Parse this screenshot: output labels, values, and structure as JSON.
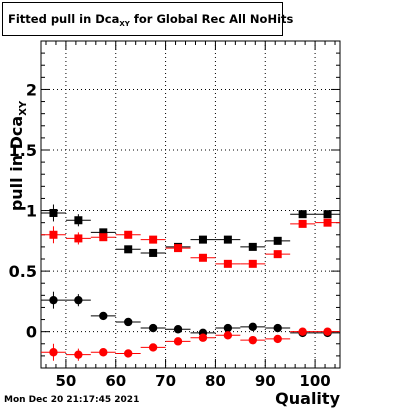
{
  "title": {
    "main": "Fitted pull in Dca",
    "sub": "XY",
    "rest": " for Global Rec All NoHits"
  },
  "datestamp": "Mon Dec 20 21:17:45 2021",
  "chart_data": {
    "type": "scatter",
    "xlabel": "Quality",
    "ylabel_main": "pull in Dca",
    "ylabel_sub": "XY",
    "xlim": [
      45,
      105
    ],
    "ylim": [
      -0.3,
      2.4
    ],
    "x_ticks": [
      50,
      60,
      70,
      80,
      90,
      100
    ],
    "y_ticks": [
      0,
      0.5,
      1,
      1.5,
      2
    ],
    "y_tick_labels": [
      "0",
      "0.5",
      "1",
      "1.5",
      "2"
    ],
    "grid": true,
    "x_error": 2.5,
    "series": [
      {
        "marker": "square",
        "color": "#000000",
        "x": [
          47.5,
          52.5,
          57.5,
          62.5,
          67.5,
          72.5,
          77.5,
          82.5,
          87.5,
          92.5,
          97.5,
          102.5
        ],
        "y": [
          0.98,
          0.92,
          0.82,
          0.68,
          0.65,
          0.7,
          0.76,
          0.76,
          0.7,
          0.75,
          0.97,
          0.97
        ],
        "yerr": [
          0.07,
          0.05,
          0.03,
          0.02,
          0.02,
          0.02,
          0.02,
          0.02,
          0.02,
          0.02,
          0.02,
          0.02
        ]
      },
      {
        "marker": "square",
        "color": "#ff0000",
        "x": [
          47.5,
          52.5,
          57.5,
          62.5,
          67.5,
          72.5,
          77.5,
          82.5,
          87.5,
          92.5,
          97.5,
          102.5
        ],
        "y": [
          0.8,
          0.77,
          0.78,
          0.8,
          0.76,
          0.69,
          0.61,
          0.56,
          0.56,
          0.64,
          0.89,
          0.9
        ],
        "yerr": [
          0.07,
          0.05,
          0.03,
          0.02,
          0.02,
          0.02,
          0.02,
          0.02,
          0.02,
          0.02,
          0.02,
          0.02
        ]
      },
      {
        "marker": "circle",
        "color": "#000000",
        "x": [
          47.5,
          52.5,
          57.5,
          62.5,
          67.5,
          72.5,
          77.5,
          82.5,
          87.5,
          92.5,
          97.5,
          102.5
        ],
        "y": [
          0.26,
          0.26,
          0.13,
          0.08,
          0.03,
          0.02,
          -0.01,
          0.03,
          0.04,
          0.03,
          -0.01,
          -0.01
        ],
        "yerr": [
          0.07,
          0.05,
          0.03,
          0.02,
          0.02,
          0.02,
          0.02,
          0.02,
          0.02,
          0.02,
          0.02,
          0.02
        ]
      },
      {
        "marker": "circle",
        "color": "#ff0000",
        "x": [
          47.5,
          52.5,
          57.5,
          62.5,
          67.5,
          72.5,
          77.5,
          82.5,
          87.5,
          92.5,
          97.5,
          102.5
        ],
        "y": [
          -0.17,
          -0.19,
          -0.17,
          -0.18,
          -0.13,
          -0.08,
          -0.05,
          -0.03,
          -0.07,
          -0.06,
          0.0,
          0.0
        ],
        "yerr": [
          0.07,
          0.05,
          0.03,
          0.02,
          0.02,
          0.02,
          0.02,
          0.02,
          0.02,
          0.02,
          0.02,
          0.02
        ]
      }
    ]
  }
}
